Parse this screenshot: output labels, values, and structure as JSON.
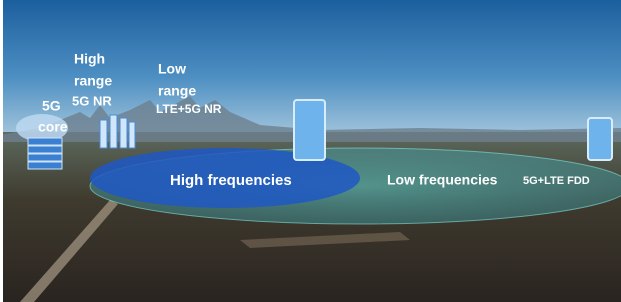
{
  "labels": {
    "high_range": [
      "High",
      "range",
      "5G NR"
    ],
    "low_range": [
      "Low",
      "range",
      "LTE+5G NR"
    ],
    "core": [
      "5G",
      "core"
    ],
    "high_frequencies": "High frequencies",
    "low_frequencies": "Low frequencies",
    "low_frequencies_bands": "5G+LTE FDD"
  }
}
